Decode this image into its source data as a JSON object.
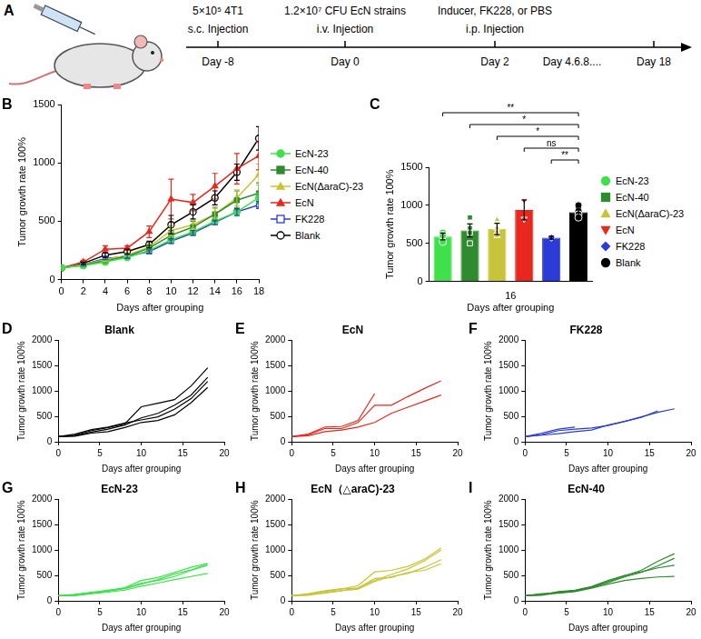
{
  "timeline": {
    "panel": "A",
    "events": [
      {
        "dose": "5×10⁵ 4T1",
        "route": "s.c. Injection",
        "day": "Day -8"
      },
      {
        "dose": "1.2×10⁷ CFU EcN strains",
        "route": "i.v. Injection",
        "day": "Day 0"
      },
      {
        "dose": "Inducer, FK228, or PBS",
        "route": "i.p. Injection",
        "day": "Day 2"
      }
    ],
    "later_days": [
      "Day 4.6.8....",
      "Day 18"
    ]
  },
  "chart_data": [
    {
      "panel": "B",
      "type": "line",
      "xlabel": "Days after grouping",
      "ylabel": "Tumor growth rate 100%",
      "x": [
        0,
        2,
        4,
        6,
        8,
        10,
        12,
        14,
        16,
        18
      ],
      "xlim": [
        0,
        18
      ],
      "xticks": [
        0,
        2,
        4,
        6,
        8,
        10,
        12,
        14,
        16,
        18
      ],
      "ylim": [
        0,
        1500
      ],
      "yticks": [
        0,
        500,
        1000,
        1500
      ],
      "grid": false,
      "legend": "right",
      "series": [
        {
          "name": "EcN-23",
          "color": "#3fe04b",
          "marker": "circle",
          "values": [
            100,
            120,
            150,
            190,
            250,
            340,
            410,
            500,
            580,
            700
          ],
          "errors": [
            0,
            8,
            10,
            15,
            20,
            25,
            30,
            30,
            35,
            40
          ]
        },
        {
          "name": "EcN-40",
          "color": "#2e8b2e",
          "marker": "square",
          "values": [
            100,
            125,
            160,
            200,
            270,
            380,
            450,
            560,
            680,
            740
          ],
          "errors": [
            0,
            10,
            15,
            20,
            25,
            40,
            50,
            60,
            80,
            90
          ]
        },
        {
          "name": "EcN(ΔaraC)-23",
          "color": "#c8c43a",
          "marker": "triangle",
          "values": [
            100,
            130,
            170,
            210,
            280,
            420,
            470,
            560,
            700,
            900
          ],
          "errors": [
            0,
            10,
            15,
            20,
            25,
            40,
            40,
            50,
            70,
            90
          ]
        },
        {
          "name": "EcN",
          "color": "#e8281e",
          "marker": "triangle",
          "values": [
            100,
            150,
            260,
            270,
            410,
            690,
            660,
            800,
            950,
            1060
          ],
          "errors": [
            0,
            15,
            30,
            20,
            50,
            170,
            70,
            110,
            130,
            120
          ]
        },
        {
          "name": "FK228",
          "color": "#2b3bd6",
          "marker": "square-open",
          "values": [
            100,
            130,
            180,
            200,
            240,
            330,
            400,
            490,
            580,
            640
          ],
          "errors": [
            0,
            10,
            10,
            15,
            15,
            20,
            20,
            20,
            30,
            30
          ]
        },
        {
          "name": "Blank",
          "color": "#000000",
          "marker": "circle-open",
          "values": [
            100,
            140,
            210,
            240,
            300,
            470,
            580,
            700,
            920,
            1210
          ],
          "errors": [
            0,
            10,
            20,
            20,
            30,
            80,
            60,
            60,
            70,
            100
          ]
        }
      ]
    },
    {
      "panel": "C",
      "type": "bar",
      "group": "16",
      "xlabel": "Days after grouping",
      "ylabel": "Tumor growth rate 100%",
      "categories": [
        "EcN-23",
        "EcN-40",
        "EcN(ΔaraC)-23",
        "EcN",
        "FK228",
        "Blank"
      ],
      "values": [
        590,
        670,
        690,
        940,
        575,
        910
      ],
      "errors": [
        45,
        85,
        75,
        130,
        20,
        55
      ],
      "points": [
        [
          520,
          600,
          610,
          640
        ],
        [
          500,
          640,
          700,
          840
        ],
        [
          600,
          650,
          700,
          810
        ],
        [
          820,
          1060
        ],
        [
          575
        ],
        [
          840,
          880,
          920,
          1000
        ]
      ],
      "colors": [
        "#3fe04b",
        "#2e8b2e",
        "#c8c43a",
        "#e8281e",
        "#2b3bd6",
        "#000000"
      ],
      "markers": [
        "circle",
        "square",
        "triangle",
        "triangle-down",
        "diamond",
        "circle"
      ],
      "ylim": [
        0,
        1500
      ],
      "yticks": [
        0,
        500,
        1000,
        1500
      ],
      "grid": false,
      "legend": "right",
      "tick_labels": "y",
      "comparisons": [
        {
          "from": "EcN-23",
          "to": "Blank",
          "label": "**"
        },
        {
          "from": "EcN-40",
          "to": "Blank",
          "label": "*"
        },
        {
          "from": "EcN(ΔaraC)-23",
          "to": "Blank",
          "label": "*"
        },
        {
          "from": "EcN",
          "to": "Blank",
          "label": "ns"
        },
        {
          "from": "FK228",
          "to": "Blank",
          "label": "**"
        }
      ]
    },
    {
      "panel": "D",
      "type": "line",
      "title": "Blank",
      "color": "#000000",
      "xlabel": "Days after grouping",
      "ylabel": "Tumor growth rate 100%",
      "x": [
        0,
        2,
        4,
        6,
        8,
        10,
        12,
        14,
        16,
        18
      ],
      "xlim": [
        0,
        20
      ],
      "xticks": [
        0,
        5,
        10,
        15,
        20
      ],
      "ylim": [
        0,
        2000
      ],
      "yticks": [
        0,
        500,
        1000,
        1500,
        2000
      ],
      "grid": false,
      "series": [
        {
          "values": [
            100,
            130,
            220,
            280,
            350,
            690,
            760,
            830,
            1100,
            1460
          ]
        },
        {
          "values": [
            100,
            120,
            190,
            250,
            330,
            470,
            560,
            720,
            920,
            1270
          ]
        },
        {
          "values": [
            100,
            150,
            240,
            290,
            370,
            430,
            490,
            640,
            850,
            1190
          ]
        },
        {
          "values": [
            100,
            110,
            170,
            200,
            280,
            380,
            420,
            530,
            770,
            1070
          ]
        }
      ]
    },
    {
      "panel": "E",
      "type": "line",
      "title": "EcN",
      "color": "#e8281e",
      "xlabel": "Days after grouping",
      "ylabel": "Tumor growth rate 100%",
      "x": [
        0,
        2,
        4,
        6,
        8,
        10,
        12,
        14,
        16,
        18
      ],
      "xlim": [
        0,
        20
      ],
      "xticks": [
        0,
        5,
        10,
        15,
        20
      ],
      "ylim": [
        0,
        2000
      ],
      "yticks": [
        0,
        500,
        1000,
        1500,
        2000
      ],
      "grid": false,
      "series": [
        {
          "values": [
            100,
            150,
            290,
            300,
            420,
            950,
            null,
            null,
            null,
            null
          ]
        },
        {
          "values": [
            100,
            140,
            260,
            260,
            380,
            720,
            720,
            890,
            1050,
            1200
          ]
        },
        {
          "values": [
            100,
            120,
            200,
            230,
            290,
            380,
            560,
            680,
            800,
            920
          ]
        }
      ]
    },
    {
      "panel": "F",
      "type": "line",
      "title": "FK228",
      "color": "#2b3bd6",
      "xlabel": "Days after grouping",
      "ylabel": "Tumor growth rate 100%",
      "x": [
        0,
        2,
        4,
        6,
        8,
        10,
        12,
        14,
        16,
        18
      ],
      "xlim": [
        0,
        20
      ],
      "xticks": [
        0,
        5,
        10,
        15,
        20
      ],
      "ylim": [
        0,
        2000
      ],
      "yticks": [
        0,
        500,
        1000,
        1500,
        2000
      ],
      "grid": false,
      "series": [
        {
          "values": [
            100,
            140,
            220,
            250,
            270,
            320,
            400,
            480,
            610,
            null
          ]
        },
        {
          "values": [
            100,
            130,
            160,
            200,
            230,
            330,
            400,
            490,
            580,
            650
          ]
        },
        {
          "values": [
            100,
            170,
            250,
            290,
            null,
            null,
            null,
            null,
            null,
            null
          ]
        }
      ]
    },
    {
      "panel": "G",
      "type": "line",
      "title": "EcN-23",
      "color": "#3fe04b",
      "xlabel": "Days after grouping",
      "ylabel": "Tumor growth rate 100%",
      "x": [
        0,
        2,
        4,
        6,
        8,
        10,
        12,
        14,
        16,
        18
      ],
      "xlim": [
        0,
        20
      ],
      "xticks": [
        0,
        5,
        10,
        15,
        20
      ],
      "ylim": [
        0,
        2000
      ],
      "yticks": [
        0,
        500,
        1000,
        1500,
        2000
      ],
      "grid": false,
      "series": [
        {
          "values": [
            100,
            120,
            150,
            200,
            260,
            400,
            460,
            560,
            660,
            740
          ]
        },
        {
          "values": [
            100,
            110,
            160,
            190,
            240,
            330,
            420,
            530,
            610,
            730
          ]
        },
        {
          "values": [
            100,
            130,
            170,
            210,
            250,
            350,
            400,
            480,
            600,
            700
          ]
        },
        {
          "values": [
            100,
            100,
            140,
            170,
            210,
            290,
            350,
            420,
            480,
            540
          ]
        }
      ]
    },
    {
      "panel": "H",
      "type": "line",
      "title": "EcN（△araC)-23",
      "color": "#c8c43a",
      "xlabel": "Days after grouping",
      "ylabel": "Tumor growth rate 100%",
      "x": [
        0,
        2,
        4,
        6,
        8,
        10,
        12,
        14,
        16,
        18
      ],
      "xlim": [
        0,
        20
      ],
      "xticks": [
        0,
        5,
        10,
        15,
        20
      ],
      "ylim": [
        0,
        2000
      ],
      "yticks": [
        0,
        500,
        1000,
        1500,
        2000
      ],
      "grid": false,
      "series": [
        {
          "values": [
            100,
            130,
            180,
            230,
            300,
            570,
            600,
            680,
            820,
            1040
          ]
        },
        {
          "values": [
            100,
            110,
            170,
            200,
            260,
            400,
            520,
            630,
            790,
            1000
          ]
        },
        {
          "values": [
            100,
            120,
            150,
            200,
            230,
            380,
            480,
            540,
            660,
            810
          ]
        },
        {
          "values": [
            100,
            140,
            200,
            240,
            250,
            440,
            460,
            560,
            600,
            730
          ]
        }
      ]
    },
    {
      "panel": "I",
      "type": "line",
      "title": "EcN-40",
      "color": "#2e8b2e",
      "xlabel": "Days after grouping",
      "ylabel": "Tumor growth rate 100%",
      "x": [
        0,
        2,
        4,
        6,
        8,
        10,
        12,
        14,
        16,
        18
      ],
      "xlim": [
        0,
        20
      ],
      "xticks": [
        0,
        5,
        10,
        15,
        20
      ],
      "ylim": [
        0,
        2000
      ],
      "yticks": [
        0,
        500,
        1000,
        1500,
        2000
      ],
      "grid": false,
      "series": [
        {
          "values": [
            100,
            130,
            170,
            200,
            270,
            380,
            490,
            600,
            780,
            930
          ]
        },
        {
          "values": [
            100,
            110,
            160,
            190,
            260,
            360,
            470,
            560,
            690,
            840
          ]
        },
        {
          "values": [
            100,
            120,
            180,
            210,
            280,
            400,
            500,
            570,
            650,
            700
          ]
        },
        {
          "values": [
            100,
            140,
            150,
            180,
            250,
            330,
            400,
            440,
            470,
            480
          ]
        }
      ]
    }
  ]
}
